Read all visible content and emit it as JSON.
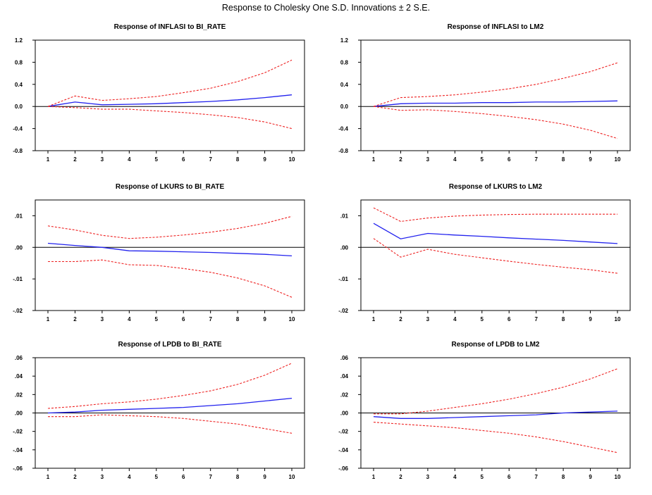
{
  "figure": {
    "title": "Response to Cholesky One S.D. Innovations ± 2 S.E."
  },
  "colors": {
    "response": "#2222ee",
    "band": "#ee2222",
    "zero": "#000000"
  },
  "chart_data": [
    {
      "type": "line",
      "title": "Response of INFLASI to BI_RATE",
      "x": [
        1,
        2,
        3,
        4,
        5,
        6,
        7,
        8,
        9,
        10
      ],
      "ylim": [
        -0.8,
        1.2
      ],
      "yticks": [
        -0.8,
        -0.4,
        0.0,
        0.4,
        0.8,
        1.2
      ],
      "ytick_labels": [
        "-0.8",
        "-0.4",
        "0.0",
        "0.4",
        "0.8",
        "1.2"
      ],
      "series": [
        {
          "role": "response",
          "values": [
            0.0,
            0.08,
            0.03,
            0.04,
            0.05,
            0.07,
            0.09,
            0.12,
            0.16,
            0.21
          ]
        },
        {
          "role": "upper",
          "values": [
            0.0,
            0.19,
            0.11,
            0.14,
            0.18,
            0.25,
            0.33,
            0.45,
            0.61,
            0.84
          ]
        },
        {
          "role": "lower",
          "values": [
            0.0,
            -0.02,
            -0.05,
            -0.05,
            -0.08,
            -0.11,
            -0.15,
            -0.2,
            -0.28,
            -0.4
          ]
        }
      ]
    },
    {
      "type": "line",
      "title": "Response of INFLASI to LM2",
      "x": [
        1,
        2,
        3,
        4,
        5,
        6,
        7,
        8,
        9,
        10
      ],
      "ylim": [
        -0.8,
        1.2
      ],
      "yticks": [
        -0.8,
        -0.4,
        0.0,
        0.4,
        0.8,
        1.2
      ],
      "ytick_labels": [
        "-0.8",
        "-0.4",
        "0.0",
        "0.4",
        "0.8",
        "1.2"
      ],
      "series": [
        {
          "role": "response",
          "values": [
            0.0,
            0.05,
            0.06,
            0.06,
            0.07,
            0.07,
            0.08,
            0.08,
            0.09,
            0.1
          ]
        },
        {
          "role": "upper",
          "values": [
            0.0,
            0.16,
            0.18,
            0.21,
            0.26,
            0.32,
            0.4,
            0.51,
            0.63,
            0.79
          ]
        },
        {
          "role": "lower",
          "values": [
            0.0,
            -0.07,
            -0.06,
            -0.09,
            -0.13,
            -0.18,
            -0.24,
            -0.32,
            -0.43,
            -0.58
          ]
        }
      ]
    },
    {
      "type": "line",
      "title": "Response of LKURS to BI_RATE",
      "x": [
        1,
        2,
        3,
        4,
        5,
        6,
        7,
        8,
        9,
        10
      ],
      "ylim": [
        -0.02,
        0.015
      ],
      "yticks": [
        -0.02,
        -0.01,
        0.0,
        0.01
      ],
      "ytick_labels": [
        "-.02",
        "-.01",
        ".00",
        ".01"
      ],
      "series": [
        {
          "role": "response",
          "values": [
            0.0013,
            0.0006,
            0.0,
            -0.0011,
            -0.0012,
            -0.0014,
            -0.0016,
            -0.0019,
            -0.0022,
            -0.0027
          ]
        },
        {
          "role": "upper",
          "values": [
            0.0068,
            0.0055,
            0.0038,
            0.0028,
            0.0032,
            0.0039,
            0.0048,
            0.006,
            0.0076,
            0.0098
          ]
        },
        {
          "role": "lower",
          "values": [
            -0.0045,
            -0.0045,
            -0.004,
            -0.0055,
            -0.0057,
            -0.0067,
            -0.0079,
            -0.0097,
            -0.0122,
            -0.0158
          ]
        }
      ]
    },
    {
      "type": "line",
      "title": "Response of LKURS to LM2",
      "x": [
        1,
        2,
        3,
        4,
        5,
        6,
        7,
        8,
        9,
        10
      ],
      "ylim": [
        -0.02,
        0.015
      ],
      "yticks": [
        -0.02,
        -0.01,
        0.0,
        0.01
      ],
      "ytick_labels": [
        "-.02",
        "-.01",
        ".00",
        ".01"
      ],
      "series": [
        {
          "role": "response",
          "values": [
            0.0076,
            0.0027,
            0.0044,
            0.0039,
            0.0035,
            0.003,
            0.0026,
            0.0022,
            0.0017,
            0.0012
          ]
        },
        {
          "role": "upper",
          "values": [
            0.0125,
            0.0082,
            0.0093,
            0.0099,
            0.0102,
            0.0104,
            0.0105,
            0.0105,
            0.0105,
            0.0105
          ]
        },
        {
          "role": "lower",
          "values": [
            0.0028,
            -0.0031,
            -0.0006,
            -0.0022,
            -0.0033,
            -0.0044,
            -0.0054,
            -0.0063,
            -0.0071,
            -0.0082
          ]
        }
      ]
    },
    {
      "type": "line",
      "title": "Response of LPDB to BI_RATE",
      "x": [
        1,
        2,
        3,
        4,
        5,
        6,
        7,
        8,
        9,
        10
      ],
      "ylim": [
        -0.06,
        0.06
      ],
      "yticks": [
        -0.06,
        -0.04,
        -0.02,
        0.0,
        0.02,
        0.04,
        0.06
      ],
      "ytick_labels": [
        "-.06",
        "-.04",
        "-.02",
        ".00",
        ".02",
        ".04",
        ".06"
      ],
      "series": [
        {
          "role": "response",
          "values": [
            0.0,
            0.001,
            0.003,
            0.004,
            0.005,
            0.006,
            0.008,
            0.01,
            0.013,
            0.016
          ]
        },
        {
          "role": "upper",
          "values": [
            0.005,
            0.007,
            0.01,
            0.012,
            0.015,
            0.019,
            0.024,
            0.031,
            0.041,
            0.054
          ]
        },
        {
          "role": "lower",
          "values": [
            -0.004,
            -0.004,
            -0.002,
            -0.003,
            -0.004,
            -0.006,
            -0.009,
            -0.012,
            -0.017,
            -0.022
          ]
        }
      ]
    },
    {
      "type": "line",
      "title": "Response of LPDB to LM2",
      "x": [
        1,
        2,
        3,
        4,
        5,
        6,
        7,
        8,
        9,
        10
      ],
      "ylim": [
        -0.06,
        0.06
      ],
      "yticks": [
        -0.06,
        -0.04,
        -0.02,
        0.0,
        0.02,
        0.04,
        0.06
      ],
      "ytick_labels": [
        "-.06",
        "-.04",
        "-.02",
        ".00",
        ".02",
        ".04",
        ".06"
      ],
      "series": [
        {
          "role": "response",
          "values": [
            -0.004,
            -0.006,
            -0.006,
            -0.005,
            -0.004,
            -0.003,
            -0.002,
            0.0,
            0.001,
            0.002
          ]
        },
        {
          "role": "upper",
          "values": [
            -0.001,
            -0.001,
            0.002,
            0.006,
            0.01,
            0.015,
            0.021,
            0.028,
            0.037,
            0.048
          ]
        },
        {
          "role": "lower",
          "values": [
            -0.01,
            -0.012,
            -0.014,
            -0.016,
            -0.019,
            -0.022,
            -0.026,
            -0.031,
            -0.037,
            -0.043
          ]
        }
      ]
    }
  ]
}
